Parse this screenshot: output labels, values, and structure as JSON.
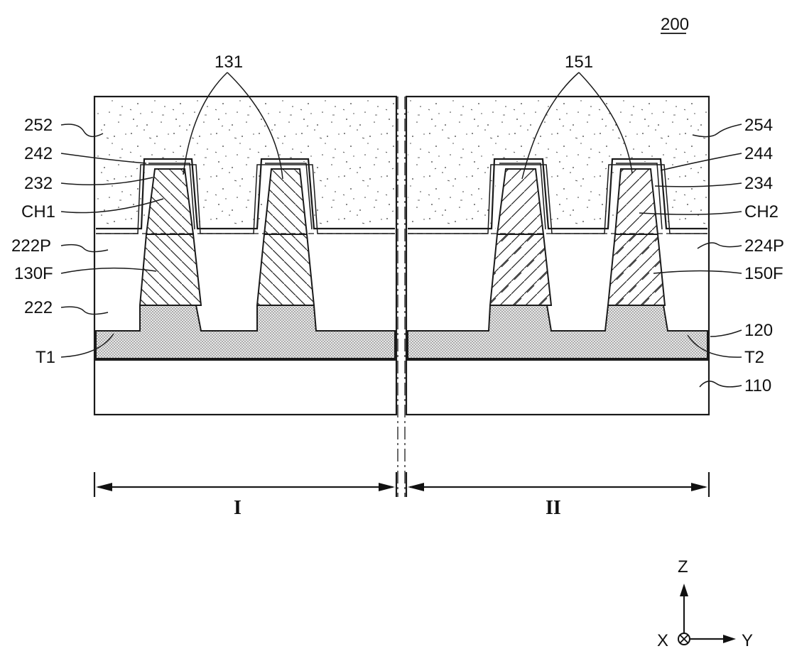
{
  "figure": {
    "number": "200"
  },
  "labels": {
    "left": [
      "252",
      "242",
      "232",
      "CH1",
      "222P",
      "130F",
      "222",
      "T1"
    ],
    "right": [
      "254",
      "244",
      "234",
      "CH2",
      "224P",
      "150F",
      "120",
      "T2",
      "110"
    ],
    "top_left": "131",
    "top_right": "151"
  },
  "regions": {
    "region_1": "I",
    "region_2": "II"
  },
  "axes": {
    "z": "Z",
    "x": "X",
    "y": "Y"
  }
}
